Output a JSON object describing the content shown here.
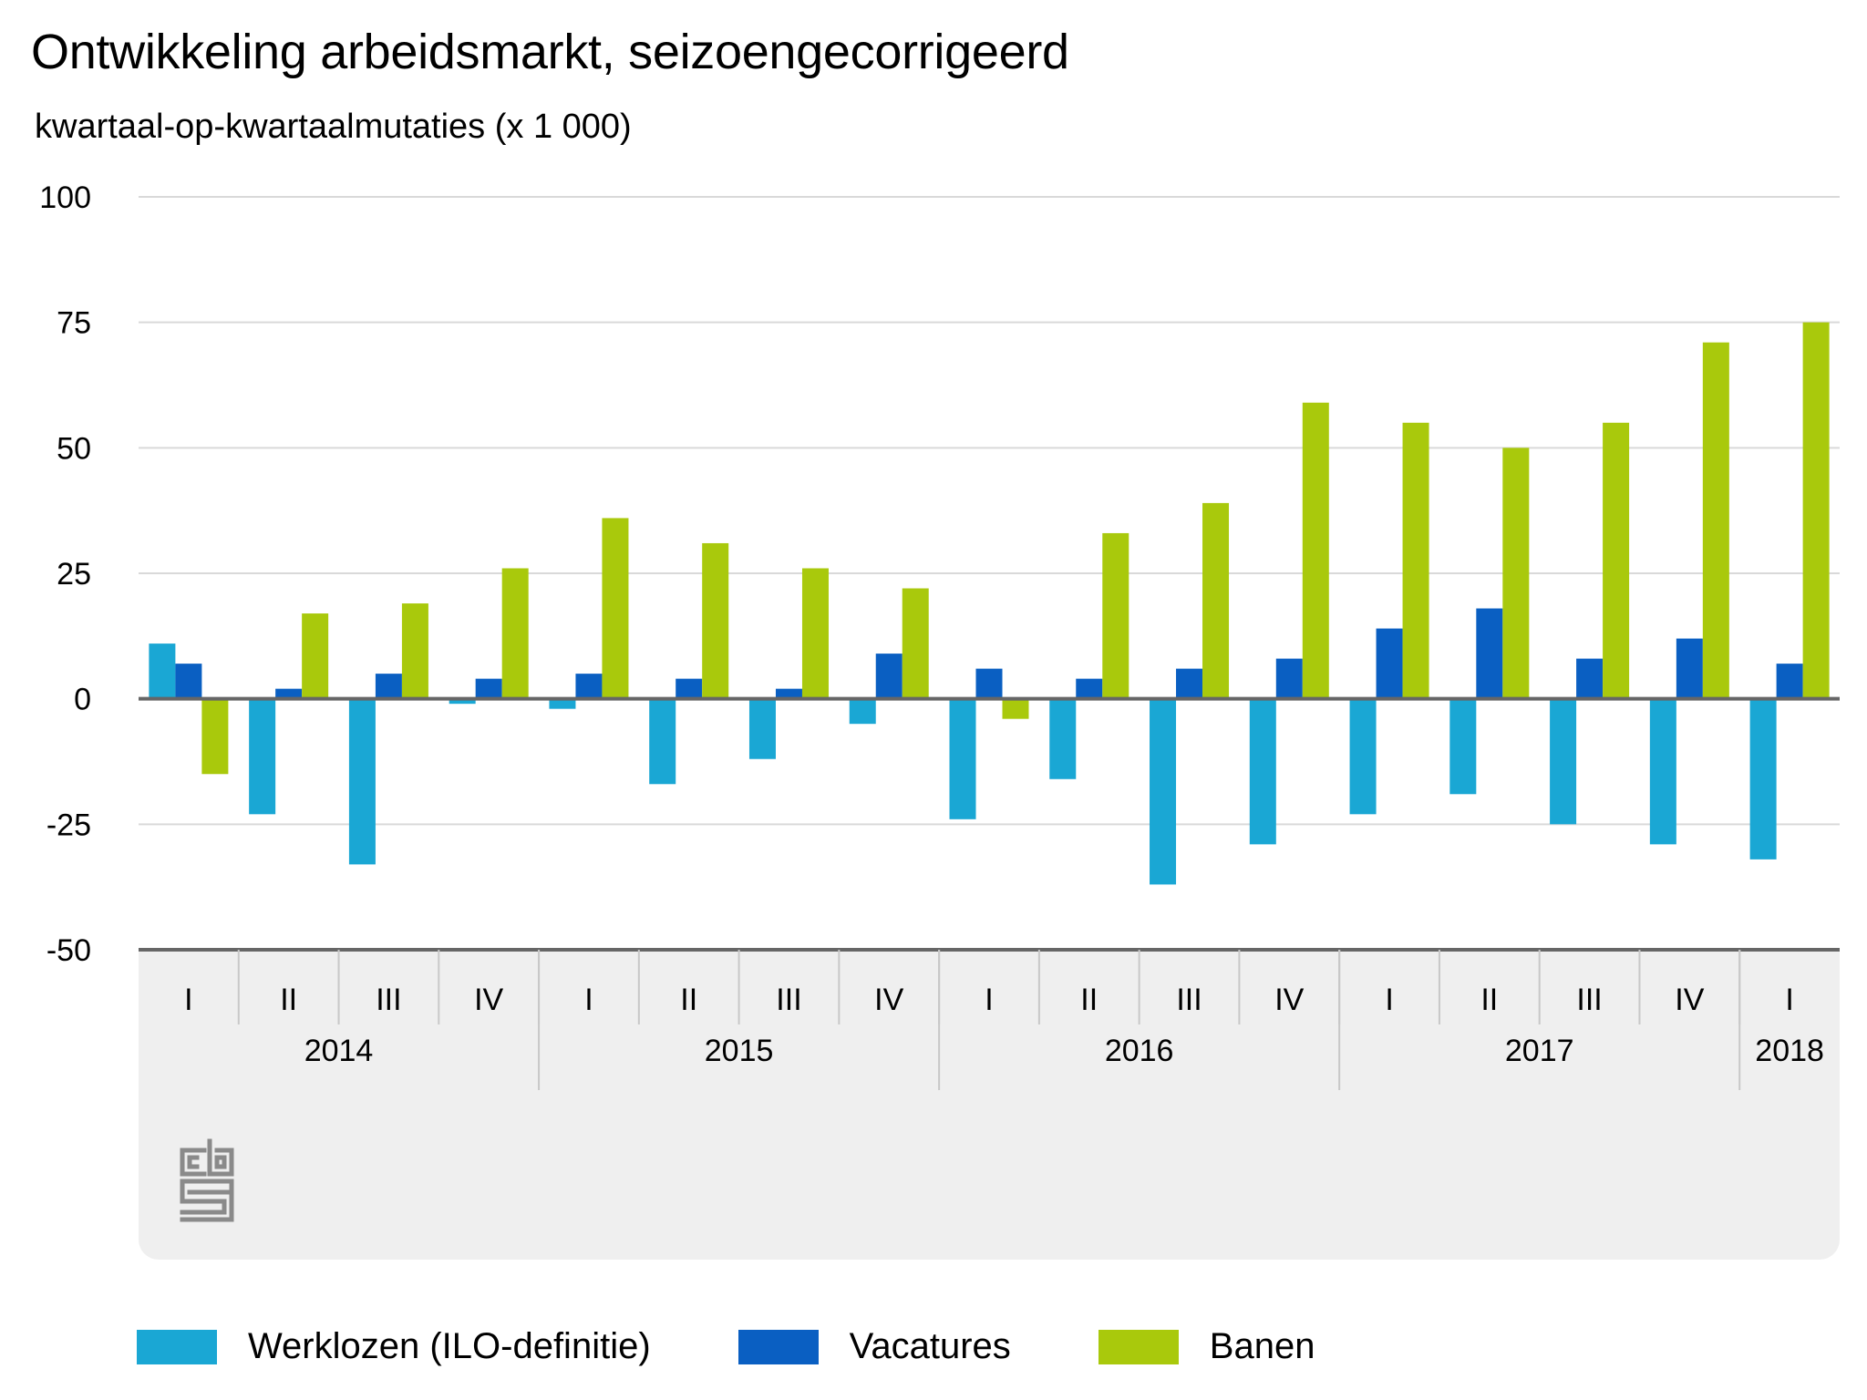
{
  "chart_data": {
    "type": "bar",
    "title": "Ontwikkeling arbeidsmarkt, seizoengecorrigeerd",
    "subtitle": "kwartaal-op-kwartaalmutaties (x 1 000)",
    "categories": [
      "I",
      "II",
      "III",
      "IV",
      "I",
      "II",
      "III",
      "IV",
      "I",
      "II",
      "III",
      "IV",
      "I",
      "II",
      "III",
      "IV",
      "I"
    ],
    "year_groups": [
      {
        "label": "2014",
        "count": 4
      },
      {
        "label": "2015",
        "count": 4
      },
      {
        "label": "2016",
        "count": 4
      },
      {
        "label": "2017",
        "count": 4
      },
      {
        "label": "2018",
        "count": 1
      }
    ],
    "series": [
      {
        "name": "Werklozen (ILO-definitie)",
        "color": "#1aa7d4",
        "values": [
          11,
          -23,
          -33,
          -1,
          -2,
          -17,
          -12,
          -5,
          -24,
          -16,
          -37,
          -29,
          -23,
          -19,
          -25,
          -29,
          -32
        ]
      },
      {
        "name": "Vacatures",
        "color": "#0a5fc2",
        "values": [
          7,
          2,
          5,
          4,
          5,
          4,
          2,
          9,
          6,
          4,
          6,
          8,
          14,
          18,
          8,
          12,
          7
        ]
      },
      {
        "name": "Banen",
        "color": "#a9c90c",
        "values": [
          -15,
          17,
          19,
          26,
          36,
          31,
          26,
          22,
          -4,
          33,
          39,
          59,
          55,
          50,
          55,
          71,
          75
        ]
      }
    ],
    "y_ticks": [
      100,
      75,
      50,
      25,
      0,
      -25,
      -50
    ],
    "y_tick_labels": [
      "100",
      "75",
      "50",
      "25",
      "0",
      "-25",
      "-50"
    ],
    "ylim": [
      -50,
      100
    ],
    "grid": true,
    "legend_position": "bottom"
  },
  "colors": {
    "gridline": "#d9d9d9",
    "baseline": "#666666",
    "footer_background": "#efefef",
    "footer_divider": "#c8c8c8",
    "logo": "#8a8a8a"
  },
  "logo": {
    "name": "cbs-logo",
    "text": "cbs"
  }
}
